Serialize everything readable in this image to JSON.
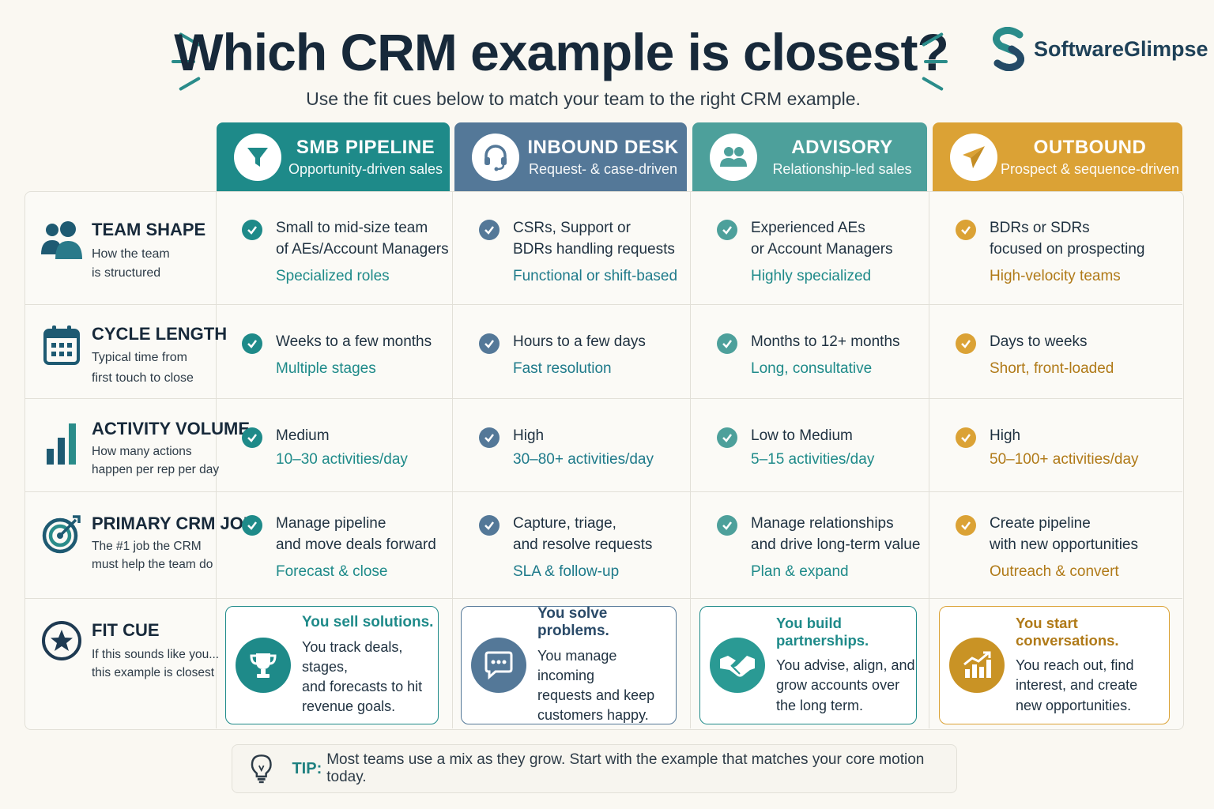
{
  "header": {
    "title": "Which CRM example is closest?",
    "subtitle": "Use the fit cues below to match your team to the right CRM example.",
    "brand": "SoftwareGlimpse"
  },
  "columns": [
    {
      "title": "SMB PIPELINE",
      "subtitle": "Opportunity-driven sales",
      "color": "#1e8a89",
      "icon": "funnel-icon"
    },
    {
      "title": "INBOUND DESK",
      "subtitle": "Request- & case-driven",
      "color": "#547898",
      "icon": "headset-icon"
    },
    {
      "title": "ADVISORY",
      "subtitle": "Relationship-led sales",
      "color": "#4da09b",
      "icon": "people-icon"
    },
    {
      "title": "OUTBOUND",
      "subtitle": "Prospect & sequence-driven",
      "color": "#dba235",
      "icon": "paper-plane-icon"
    }
  ],
  "rows": [
    {
      "label": "TEAM SHAPE",
      "desc": "How the team\nis structured",
      "icon": "team-icon",
      "cells": [
        {
          "main": "Small to mid-size team\nof AEs/Account Managers",
          "sub": "Specialized roles"
        },
        {
          "main": "CSRs, Support or\nBDRs handling requests",
          "sub": "Functional or shift-based"
        },
        {
          "main": "Experienced AEs\nor Account Managers",
          "sub": "Highly specialized"
        },
        {
          "main": "BDRs or SDRs\nfocused on prospecting",
          "sub": "High-velocity teams"
        }
      ]
    },
    {
      "label": "CYCLE LENGTH",
      "desc": "Typical time from\nfirst touch to close",
      "icon": "calendar-icon",
      "cells": [
        {
          "main": "Weeks to a few months",
          "sub": "Multiple stages"
        },
        {
          "main": "Hours to a few days",
          "sub": "Fast resolution"
        },
        {
          "main": "Months to 12+ months",
          "sub": "Long, consultative"
        },
        {
          "main": "Days to weeks",
          "sub": "Short, front-loaded"
        }
      ]
    },
    {
      "label": "ACTIVITY VOLUME",
      "desc": "How many actions\nhappen per rep per day",
      "icon": "bar-chart-icon",
      "cells": [
        {
          "main": "Medium",
          "sub": "10–30 activities/day"
        },
        {
          "main": "High",
          "sub": "30–80+ activities/day"
        },
        {
          "main": "Low to Medium",
          "sub": "5–15 activities/day"
        },
        {
          "main": "High",
          "sub": "50–100+ activities/day"
        }
      ]
    },
    {
      "label": "PRIMARY CRM JOB",
      "desc": "The #1 job the CRM\nmust help the team do",
      "icon": "target-icon",
      "cells": [
        {
          "main": "Manage pipeline\nand move deals forward",
          "sub": "Forecast & close"
        },
        {
          "main": "Capture, triage,\nand resolve requests",
          "sub": "SLA & follow-up"
        },
        {
          "main": "Manage relationships\nand drive long-term value",
          "sub": "Plan & expand"
        },
        {
          "main": "Create pipeline\nwith new opportunities",
          "sub": "Outreach & convert"
        }
      ]
    }
  ],
  "fit_row": {
    "label": "FIT CUE",
    "desc": "If this sounds like you...\nthis example is closest",
    "icon": "star-icon",
    "cards": [
      {
        "heading": "You sell solutions.",
        "body": "You track deals, stages,\nand forecasts to hit\nrevenue goals.",
        "icon": "trophy-icon"
      },
      {
        "heading": "You solve problems.",
        "body": "You manage incoming\nrequests and keep\ncustomers happy.",
        "icon": "chat-bubble-icon"
      },
      {
        "heading": "You build partnerships.",
        "body": "You advise, align, and\ngrow accounts over\nthe long term.",
        "icon": "handshake-icon"
      },
      {
        "heading": "You start conversations.",
        "body": "You reach out, find\ninterest, and create\nnew opportunities.",
        "icon": "growth-chart-icon"
      }
    ]
  },
  "tip": {
    "label": "TIP:",
    "text": "Most teams use a mix as they grow. Start with the example that matches your core motion today."
  },
  "colors": {
    "teal": "#1e8a89",
    "slate": "#547898",
    "sage": "#4da09b",
    "gold": "#dba235",
    "navy": "#17293a"
  }
}
